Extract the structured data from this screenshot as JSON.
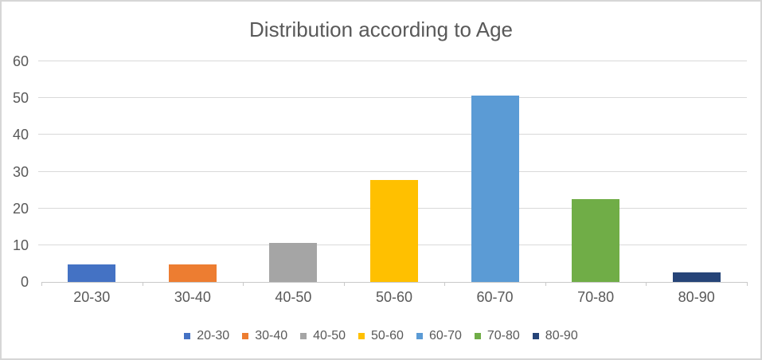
{
  "window": {
    "background": "#FFFFFF",
    "border_color": "#D6D6D6"
  },
  "chart_data": {
    "type": "bar",
    "title": "Distribution according to Age",
    "title_color": "#595959",
    "categories": [
      "20-30",
      "30-40",
      "40-50",
      "50-60",
      "60-70",
      "70-80",
      "80-90"
    ],
    "values": [
      4.8,
      4.8,
      10.6,
      27.8,
      50.6,
      22.6,
      2.6
    ],
    "bar_colors": [
      "#4472C4",
      "#ED7D31",
      "#A5A5A5",
      "#FFC000",
      "#5B9BD5",
      "#70AD47",
      "#264478"
    ],
    "xlabel": "",
    "ylabel": "",
    "ylim": [
      0,
      60
    ],
    "yticks": [
      0,
      10,
      20,
      30,
      40,
      50,
      60
    ],
    "grid": true,
    "gridline_color": "#D9D9D9",
    "axis_line_color": "#C9C9C9",
    "axis_label_color": "#595959",
    "legend": {
      "position": "bottom",
      "entries": [
        "20-30",
        "30-40",
        "40-50",
        "50-60",
        "60-70",
        "70-80",
        "80-90"
      ]
    }
  }
}
